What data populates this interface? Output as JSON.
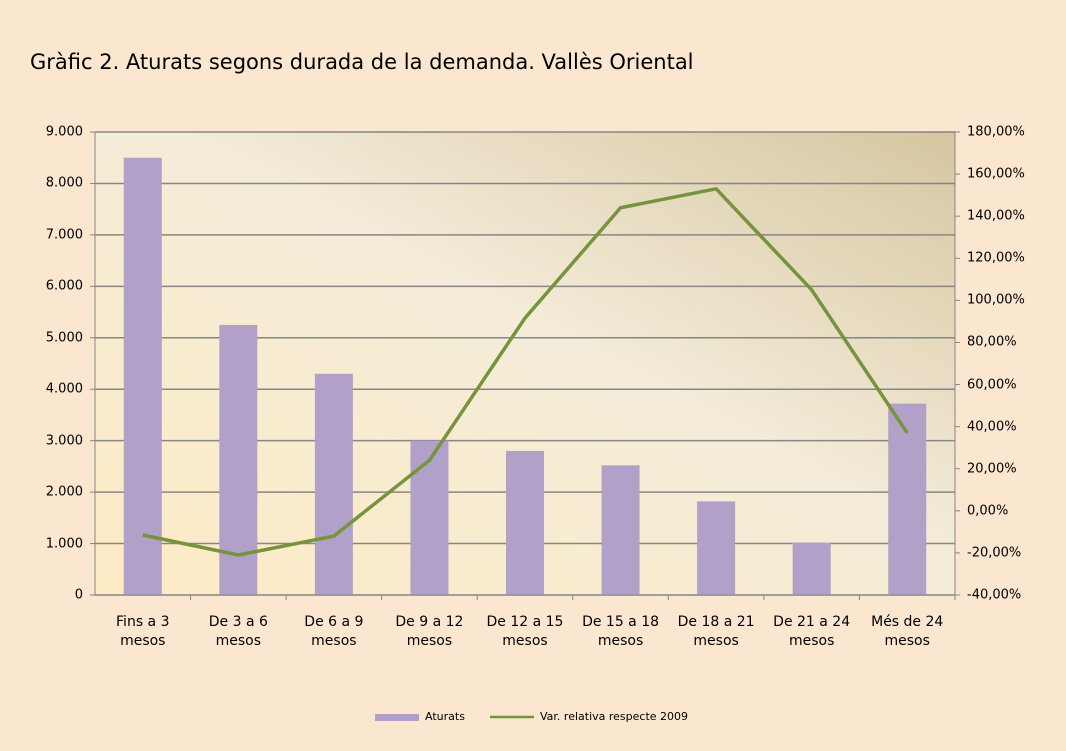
{
  "chart_data": {
    "type": "bar_line",
    "title": "Gràfic 2. Aturats segons durada de la demanda. Vallès Oriental",
    "categories": [
      "Fins a 3 mesos",
      "De 3 a 6 mesos",
      "De 6 a 9 mesos",
      "De 9 a 12 mesos",
      "De 12 a 15 mesos",
      "De 15 a 18 mesos",
      "De 18 a 21 mesos",
      "De 21 a 24 mesos",
      "Més de 24 mesos"
    ],
    "series": [
      {
        "name": "Aturats",
        "type": "bar",
        "color": "#b1a0c7",
        "values": [
          8500,
          5250,
          4300,
          3000,
          2800,
          2520,
          1820,
          1020,
          3720
        ]
      },
      {
        "name": "Var. relativa respecte 2009",
        "type": "line",
        "axis": "y2",
        "color": "#77933c",
        "values": [
          -11.5,
          -21,
          -12,
          24,
          91.6,
          144,
          153,
          105,
          37
        ]
      }
    ],
    "ylim": [
      0,
      9000
    ],
    "yticks": [
      0,
      {
        "value": 1000,
        "label": "1.000"
      },
      {
        "value": 2000,
        "label": "2.000"
      },
      {
        "value": 3000,
        "label": "3.000"
      },
      {
        "value": 4000,
        "label": "4.000"
      },
      {
        "value": 5000,
        "label": "5.000"
      },
      {
        "value": 6000,
        "label": "6.000"
      },
      {
        "value": 7000,
        "label": "7.000"
      },
      {
        "value": 8000,
        "label": "8.000"
      },
      {
        "value": 9000,
        "label": "9.000"
      }
    ],
    "y2lim": [
      -40,
      180
    ],
    "y2ticks": [
      {
        "value": -40,
        "label": "-40,00%"
      },
      {
        "value": -20,
        "label": "-20,00%"
      },
      {
        "value": 0,
        "label": "0,00%"
      },
      {
        "value": 20,
        "label": "20,00%"
      },
      {
        "value": 40,
        "label": "40,00%"
      },
      {
        "value": 60,
        "label": "60,00%"
      },
      {
        "value": 80,
        "label": "80,00%"
      },
      {
        "value": 100,
        "label": "100,00%"
      },
      {
        "value": 120,
        "label": "120,00%"
      },
      {
        "value": 140,
        "label": "140,00%"
      },
      {
        "value": 160,
        "label": "160,00%"
      },
      {
        "value": 180,
        "label": "180,00%"
      }
    ],
    "grid": true,
    "legend": "bottom"
  }
}
